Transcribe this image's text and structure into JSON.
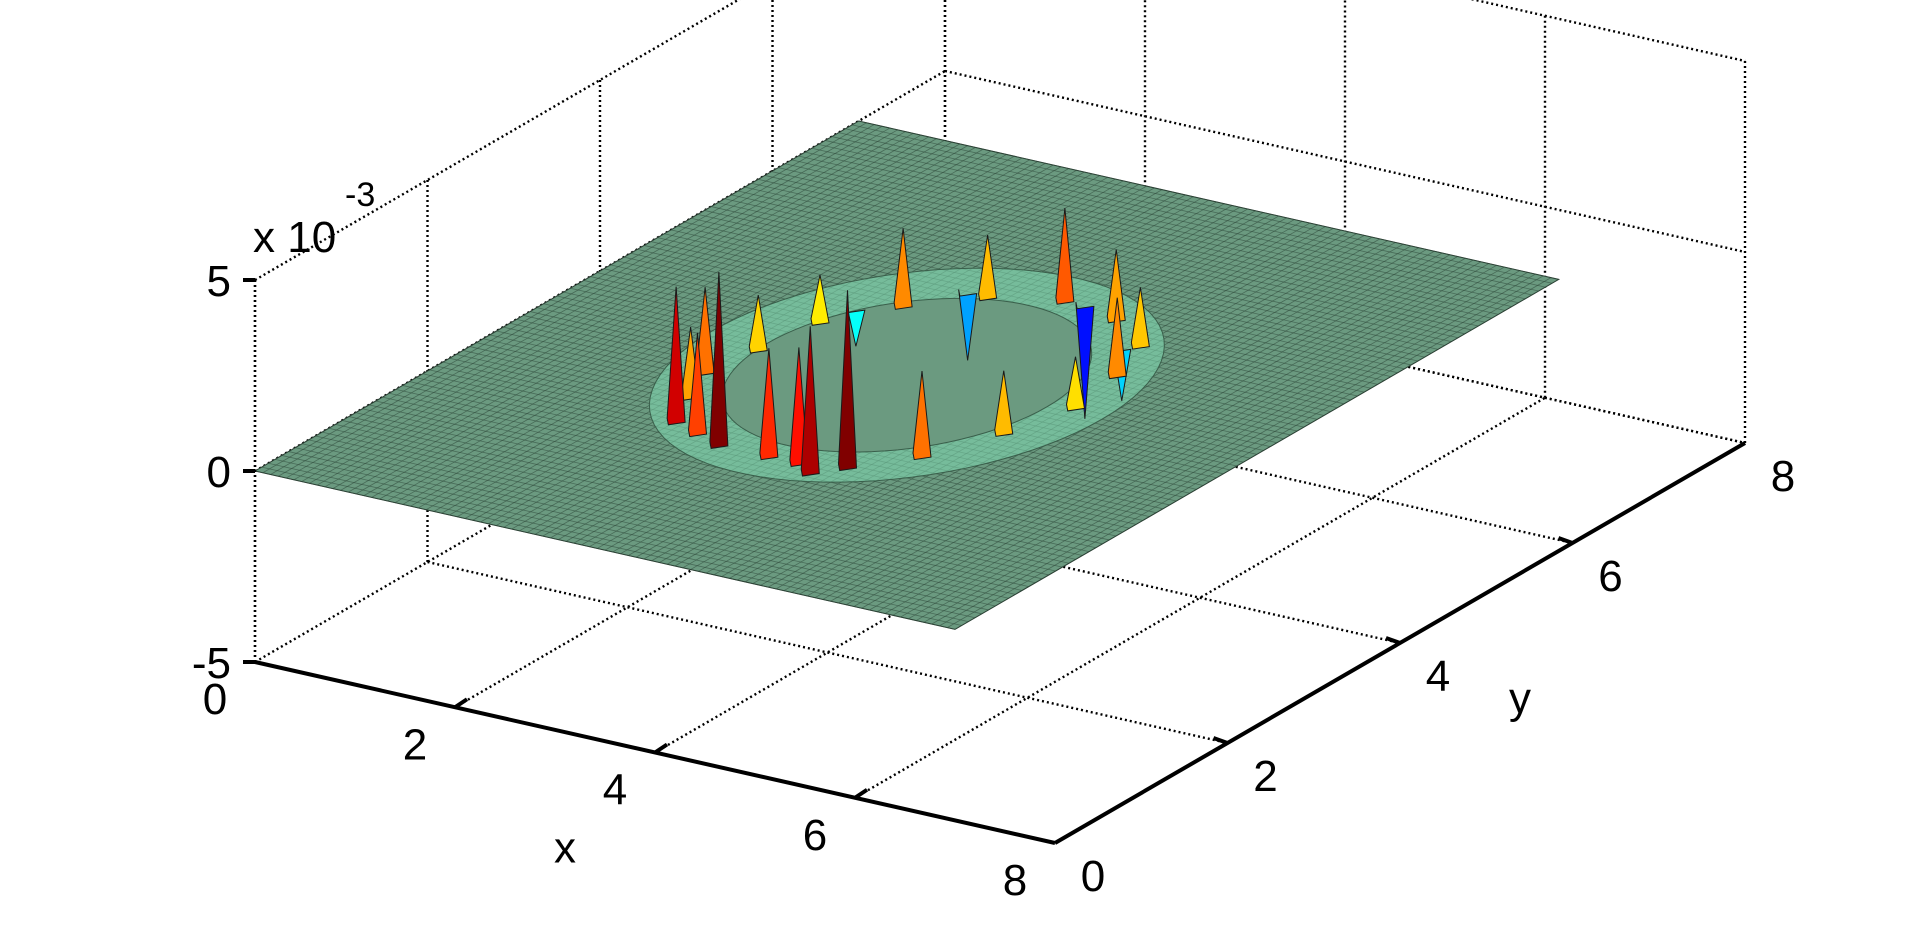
{
  "chart_data": {
    "type": "surface",
    "title": "",
    "xlabel": "x",
    "ylabel": "y",
    "zlabel": "",
    "xlim": [
      0,
      8
    ],
    "ylim": [
      0,
      8
    ],
    "zlim": [
      -0.005,
      0.005
    ],
    "x_ticks": [
      "0",
      "2",
      "4",
      "6",
      "8"
    ],
    "y_ticks": [
      "0",
      "2",
      "4",
      "6",
      "8"
    ],
    "z_ticks": [
      "-5",
      "0",
      "5"
    ],
    "z_multiplier": {
      "base": "x 10",
      "exponent": "-3"
    },
    "grid": true,
    "colormap": "jet",
    "surface": {
      "domain_x": [
        0,
        7
      ],
      "domain_y": [
        0,
        7
      ],
      "baseline_z": 0,
      "ring_center": [
        3.5,
        3.5
      ],
      "ring_radius": 1.6,
      "peaks": [
        {
          "x": 3.0,
          "y": 1.9,
          "z": 0.0045
        },
        {
          "x": 3.5,
          "y": 1.9,
          "z": 0.0028
        },
        {
          "x": 2.4,
          "y": 2.1,
          "z": 0.0035
        },
        {
          "x": 2.2,
          "y": 2.5,
          "z": 0.0018
        },
        {
          "x": 2.0,
          "y": 2.9,
          "z": 0.0022
        },
        {
          "x": 2.1,
          "y": 3.4,
          "z": 0.0014
        },
        {
          "x": 2.2,
          "y": 4.0,
          "z": 0.0012
        },
        {
          "x": 2.6,
          "y": 4.5,
          "z": 0.002
        },
        {
          "x": 3.1,
          "y": 4.9,
          "z": 0.0016
        },
        {
          "x": 3.7,
          "y": 5.1,
          "z": 0.0024
        },
        {
          "x": 4.3,
          "y": 5.0,
          "z": 0.0018
        },
        {
          "x": 4.8,
          "y": 4.7,
          "z": 0.0015
        },
        {
          "x": 5.0,
          "y": 4.2,
          "z": 0.002
        },
        {
          "x": 5.1,
          "y": 3.6,
          "z": 0.0013
        },
        {
          "x": 4.9,
          "y": 3.0,
          "z": 0.0016
        },
        {
          "x": 4.6,
          "y": 2.4,
          "z": 0.0022
        },
        {
          "x": 4.2,
          "y": 2.0,
          "z": 0.0046
        },
        {
          "x": 3.8,
          "y": 1.9,
          "z": 0.003
        },
        {
          "x": 4.0,
          "y": 1.8,
          "z": 0.0038
        },
        {
          "x": 2.7,
          "y": 2.0,
          "z": 0.0026
        },
        {
          "x": 3.9,
          "y": 5.1,
          "z": -0.003
        },
        {
          "x": 2.9,
          "y": 4.9,
          "z": -0.0018
        },
        {
          "x": 4.7,
          "y": 4.6,
          "z": -0.0014
        },
        {
          "x": 2.3,
          "y": 4.3,
          "z": -0.001
        }
      ]
    }
  }
}
